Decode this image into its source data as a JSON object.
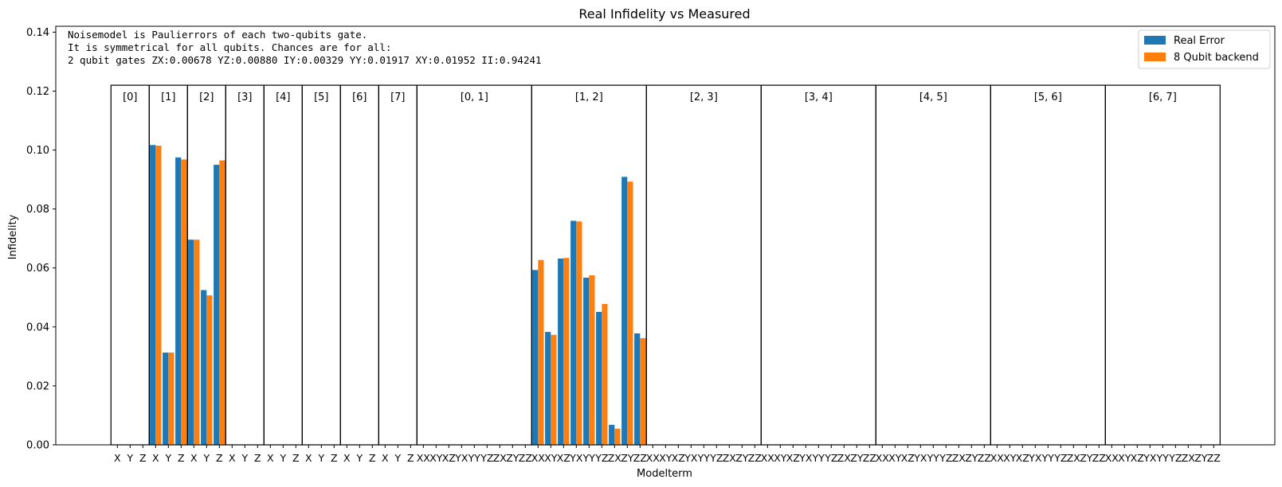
{
  "chart_data": {
    "type": "bar",
    "title": "Real Infidelity vs Measured",
    "xlabel": "Modelterm",
    "ylabel": "Infidelity",
    "ylim": [
      0,
      0.142
    ],
    "yticks": [
      "0.00",
      "0.02",
      "0.04",
      "0.06",
      "0.08",
      "0.10",
      "0.12",
      "0.14"
    ],
    "annotation": [
      "Noisemodel is Paulierrors of each two-qubits gate.",
      "It is symmetrical for all qubits. Chances are for all:",
      "2 qubit gates ZX:0.00678   YZ:0.00880   IY:0.00329   YY:0.01917   XY:0.01952   II:0.94241"
    ],
    "legend": {
      "placement": "top-right"
    },
    "series": [
      {
        "name": "Real Error",
        "color": "#1f77b4"
      },
      {
        "name": "8 Qubit backend",
        "color": "#ff7f0e"
      }
    ],
    "groups": [
      {
        "label": "[0]",
        "terms": [
          "X",
          "Y",
          "Z"
        ],
        "real": [
          0,
          0,
          0
        ],
        "backend": [
          0,
          0,
          0
        ]
      },
      {
        "label": "[1]",
        "terms": [
          "X",
          "Y",
          "Z"
        ],
        "real": [
          0.1017,
          0.0313,
          0.0975
        ],
        "backend": [
          0.1015,
          0.0313,
          0.0968
        ]
      },
      {
        "label": "[2]",
        "terms": [
          "X",
          "Y",
          "Z"
        ],
        "real": [
          0.0696,
          0.0525,
          0.095
        ],
        "backend": [
          0.0696,
          0.0507,
          0.0965
        ]
      },
      {
        "label": "[3]",
        "terms": [
          "X",
          "Y",
          "Z"
        ],
        "real": [
          0,
          0,
          0
        ],
        "backend": [
          0,
          0,
          0
        ]
      },
      {
        "label": "[4]",
        "terms": [
          "X",
          "Y",
          "Z"
        ],
        "real": [
          0,
          0,
          0
        ],
        "backend": [
          0,
          0,
          0
        ]
      },
      {
        "label": "[5]",
        "terms": [
          "X",
          "Y",
          "Z"
        ],
        "real": [
          0,
          0,
          0
        ],
        "backend": [
          0,
          0,
          0
        ]
      },
      {
        "label": "[6]",
        "terms": [
          "X",
          "Y",
          "Z"
        ],
        "real": [
          0,
          0,
          0
        ],
        "backend": [
          0,
          0,
          0
        ]
      },
      {
        "label": "[7]",
        "terms": [
          "X",
          "Y",
          "Z"
        ],
        "real": [
          0,
          0,
          0
        ],
        "backend": [
          0,
          0,
          0
        ]
      },
      {
        "label": "[0, 1]",
        "terms": [
          "XX",
          "XY",
          "XZ",
          "YX",
          "YY",
          "YZ",
          "ZX",
          "ZY",
          "ZZ"
        ],
        "real": [
          0,
          0,
          0,
          0,
          0,
          0,
          0,
          0,
          0
        ],
        "backend": [
          0,
          0,
          0,
          0,
          0,
          0,
          0,
          0,
          0
        ]
      },
      {
        "label": "[1, 2]",
        "terms": [
          "XX",
          "XY",
          "XZ",
          "YX",
          "YY",
          "YZ",
          "ZX",
          "ZY",
          "ZZ"
        ],
        "real": [
          0.0593,
          0.0383,
          0.0632,
          0.076,
          0.0567,
          0.0451,
          0.0068,
          0.0909,
          0.0378
        ],
        "backend": [
          0.0627,
          0.0373,
          0.0634,
          0.0758,
          0.0575,
          0.0478,
          0.0055,
          0.0893,
          0.0362
        ]
      },
      {
        "label": "[2, 3]",
        "terms": [
          "XX",
          "XY",
          "XZ",
          "YX",
          "YY",
          "YZ",
          "ZX",
          "ZY",
          "ZZ"
        ],
        "real": [
          0,
          0,
          0,
          0,
          0,
          0,
          0,
          0,
          0
        ],
        "backend": [
          0,
          0,
          0,
          0,
          0,
          0,
          0,
          0,
          0
        ]
      },
      {
        "label": "[3, 4]",
        "terms": [
          "XX",
          "XY",
          "XZ",
          "YX",
          "YY",
          "YZ",
          "ZX",
          "ZY",
          "ZZ"
        ],
        "real": [
          0,
          0,
          0,
          0,
          0,
          0,
          0,
          0,
          0
        ],
        "backend": [
          0,
          0,
          0,
          0,
          0,
          0,
          0,
          0,
          0
        ]
      },
      {
        "label": "[4, 5]",
        "terms": [
          "XX",
          "XY",
          "XZ",
          "YX",
          "YY",
          "YZ",
          "ZX",
          "ZY",
          "ZZ"
        ],
        "real": [
          0,
          0,
          0,
          0,
          0,
          0,
          0,
          0,
          0
        ],
        "backend": [
          0,
          0,
          0,
          0,
          0,
          0,
          0,
          0,
          0
        ]
      },
      {
        "label": "[5, 6]",
        "terms": [
          "XX",
          "XY",
          "XZ",
          "YX",
          "YY",
          "YZ",
          "ZX",
          "ZY",
          "ZZ"
        ],
        "real": [
          0,
          0,
          0,
          0,
          0,
          0,
          0,
          0,
          0
        ],
        "backend": [
          0,
          0,
          0,
          0,
          0,
          0,
          0,
          0,
          0
        ]
      },
      {
        "label": "[6, 7]",
        "terms": [
          "XX",
          "XY",
          "XZ",
          "YX",
          "YY",
          "YZ",
          "ZX",
          "ZY",
          "ZZ"
        ],
        "real": [
          0,
          0,
          0,
          0,
          0,
          0,
          0,
          0,
          0
        ],
        "backend": [
          0,
          0,
          0,
          0,
          0,
          0,
          0,
          0,
          0
        ]
      }
    ],
    "group_box_top": 0.122,
    "grid": false
  }
}
